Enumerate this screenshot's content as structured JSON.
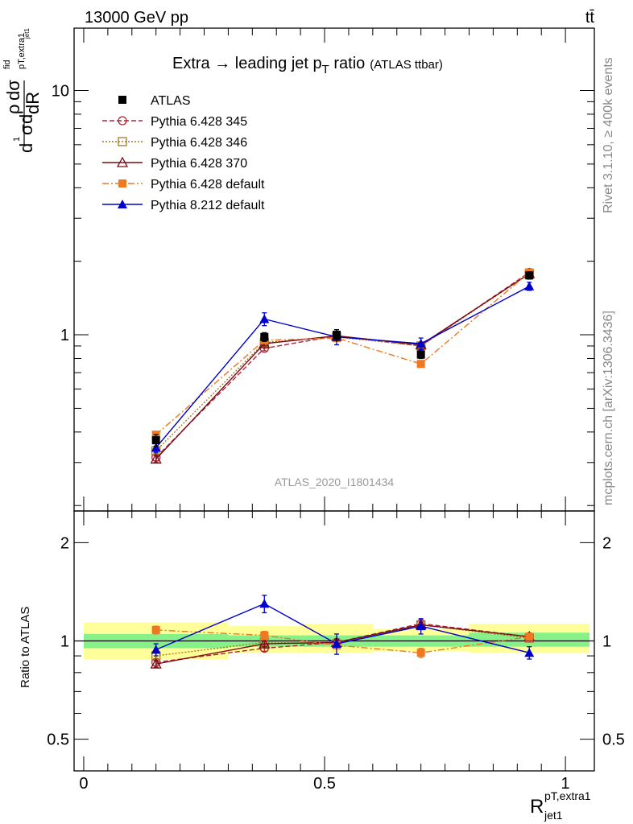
{
  "header": {
    "left": "13000 GeV pp",
    "right": "tt̄"
  },
  "side": {
    "rivet": "Rivet 3.1.10, ≥ 400k events",
    "url": "mcplots.cern.ch [arXiv:1306.3436]"
  },
  "watermark": "ATLAS_2020_I1801434",
  "colors": {
    "atlas": "#000000",
    "p345": "#b22234",
    "p346": "#a07a2a",
    "p370": "#7a0a14",
    "pdef": "#f07820",
    "p8": "#0000cc",
    "band_inner": "#88f088",
    "band_outer": "#ffff99"
  },
  "chart_data": [
    {
      "type": "line",
      "panel": "main",
      "title": "Extra → leading jet p",
      "title_sub": "T",
      "title_suffix": " ratio",
      "title_small": "(ATLAS ttbar)",
      "ylabel": "dσ / dR",
      "ylabel_parts": {
        "d1": "d",
        "one": "1",
        "sigma": "σ",
        "d2": "d",
        "rho": "ρ",
        "dsig": "dσ",
        "fid": "fid",
        "sub": "pT,extra1",
        "subsub": "jet1",
        "dR": "dR"
      },
      "yscale": "log",
      "ylim": [
        0.19,
        18
      ],
      "xlim": [
        -0.02,
        1.06
      ],
      "yticks": [
        1,
        10
      ],
      "yticklabels": [
        "1",
        "10"
      ],
      "legend_position": "top-left",
      "series": [
        {
          "name": "ATLAS",
          "key": "atlas",
          "marker": "square",
          "line": "none",
          "x": [
            0.15,
            0.375,
            0.525,
            0.7,
            0.925
          ],
          "y": [
            0.37,
            0.98,
            1.0,
            0.83,
            1.75
          ],
          "yerr": [
            0.02,
            0.04,
            0.05,
            0.03,
            0.06
          ]
        },
        {
          "name": "Pythia 6.428 345",
          "key": "p345",
          "marker": "circle-open",
          "line": "dashed",
          "x": [
            0.15,
            0.375,
            0.525,
            0.7,
            0.925
          ],
          "y": [
            0.315,
            0.88,
            0.99,
            0.9,
            1.8
          ],
          "yerr": [
            0.01,
            0.02,
            0.02,
            0.02,
            0.03
          ]
        },
        {
          "name": "Pythia 6.428 346",
          "key": "p346",
          "marker": "square-open",
          "line": "dotted",
          "x": [
            0.15,
            0.375,
            0.525,
            0.7,
            0.925
          ],
          "y": [
            0.335,
            0.93,
            0.98,
            0.9,
            1.78
          ],
          "yerr": [
            0.01,
            0.02,
            0.02,
            0.02,
            0.03
          ]
        },
        {
          "name": "Pythia 6.428 370",
          "key": "p370",
          "marker": "triangle-open",
          "line": "solid",
          "x": [
            0.15,
            0.375,
            0.525,
            0.7,
            0.925
          ],
          "y": [
            0.31,
            0.92,
            0.99,
            0.91,
            1.78
          ],
          "yerr": [
            0.01,
            0.02,
            0.02,
            0.02,
            0.03
          ]
        },
        {
          "name": "Pythia 6.428 default",
          "key": "pdef",
          "marker": "square",
          "line": "dashdot",
          "x": [
            0.15,
            0.375,
            0.525,
            0.7,
            0.925
          ],
          "y": [
            0.39,
            0.95,
            0.97,
            0.76,
            1.8
          ],
          "yerr": [
            0.01,
            0.02,
            0.02,
            0.02,
            0.03
          ]
        },
        {
          "name": "Pythia 8.212 default",
          "key": "p8",
          "marker": "triangle",
          "line": "solid",
          "x": [
            0.15,
            0.375,
            0.525,
            0.7,
            0.925
          ],
          "y": [
            0.345,
            1.16,
            0.98,
            0.92,
            1.58
          ],
          "yerr": [
            0.015,
            0.07,
            0.07,
            0.05,
            0.06
          ]
        }
      ]
    },
    {
      "type": "line",
      "panel": "ratio",
      "ylabel": "Ratio to ATLAS",
      "xlabel": "R",
      "xlabel_sup": "pT,extra1",
      "xlabel_sub": "jet1",
      "yscale": "log",
      "ylim": [
        0.4,
        2.5
      ],
      "xlim": [
        -0.02,
        1.06
      ],
      "yticks": [
        0.5,
        1,
        2
      ],
      "yticklabels": [
        "0.5",
        "1",
        "2"
      ],
      "xticks": [
        0,
        0.5,
        1
      ],
      "xticklabels": [
        "0",
        "0.5",
        "1"
      ],
      "bands": [
        {
          "x0": 0.0,
          "x1": 0.3,
          "inner": [
            0.95,
            1.05
          ],
          "outer": [
            0.88,
            1.14
          ]
        },
        {
          "x0": 0.3,
          "x1": 0.45,
          "inner": [
            0.96,
            1.04
          ],
          "outer": [
            0.92,
            1.11
          ]
        },
        {
          "x0": 0.45,
          "x1": 0.6,
          "inner": [
            0.96,
            1.04
          ],
          "outer": [
            0.92,
            1.13
          ]
        },
        {
          "x0": 0.6,
          "x1": 0.8,
          "inner": [
            0.96,
            1.04
          ],
          "outer": [
            0.93,
            1.09
          ]
        },
        {
          "x0": 0.8,
          "x1": 1.05,
          "inner": [
            0.96,
            1.06
          ],
          "outer": [
            0.92,
            1.13
          ]
        }
      ],
      "series": [
        {
          "name": "Pythia 6.428 345",
          "key": "p345",
          "marker": "circle-open",
          "line": "dashed",
          "x": [
            0.15,
            0.375,
            0.525,
            0.7,
            0.925
          ],
          "y": [
            0.86,
            0.95,
            0.99,
            1.13,
            1.03
          ],
          "yerr": [
            0.02,
            0.02,
            0.02,
            0.02,
            0.02
          ]
        },
        {
          "name": "Pythia 6.428 346",
          "key": "p346",
          "marker": "square-open",
          "line": "dotted",
          "x": [
            0.15,
            0.375,
            0.525,
            0.7,
            0.925
          ],
          "y": [
            0.9,
            0.99,
            0.98,
            1.12,
            1.02
          ],
          "yerr": [
            0.02,
            0.02,
            0.02,
            0.02,
            0.02
          ]
        },
        {
          "name": "Pythia 6.428 370",
          "key": "p370",
          "marker": "triangle-open",
          "line": "solid",
          "x": [
            0.15,
            0.375,
            0.525,
            0.7,
            0.925
          ],
          "y": [
            0.85,
            0.98,
            0.99,
            1.12,
            1.03
          ],
          "yerr": [
            0.02,
            0.02,
            0.02,
            0.02,
            0.02
          ]
        },
        {
          "name": "Pythia 6.428 default",
          "key": "pdef",
          "marker": "square",
          "line": "dashdot",
          "x": [
            0.15,
            0.375,
            0.525,
            0.7,
            0.925
          ],
          "y": [
            1.08,
            1.04,
            0.97,
            0.92,
            1.03
          ],
          "yerr": [
            0.03,
            0.03,
            0.02,
            0.03,
            0.02
          ]
        },
        {
          "name": "Pythia 8.212 default",
          "key": "p8",
          "marker": "triangle",
          "line": "solid",
          "x": [
            0.15,
            0.375,
            0.525,
            0.7,
            0.925
          ],
          "y": [
            0.94,
            1.3,
            0.98,
            1.11,
            0.92
          ],
          "yerr": [
            0.04,
            0.08,
            0.07,
            0.06,
            0.04
          ]
        }
      ]
    }
  ]
}
